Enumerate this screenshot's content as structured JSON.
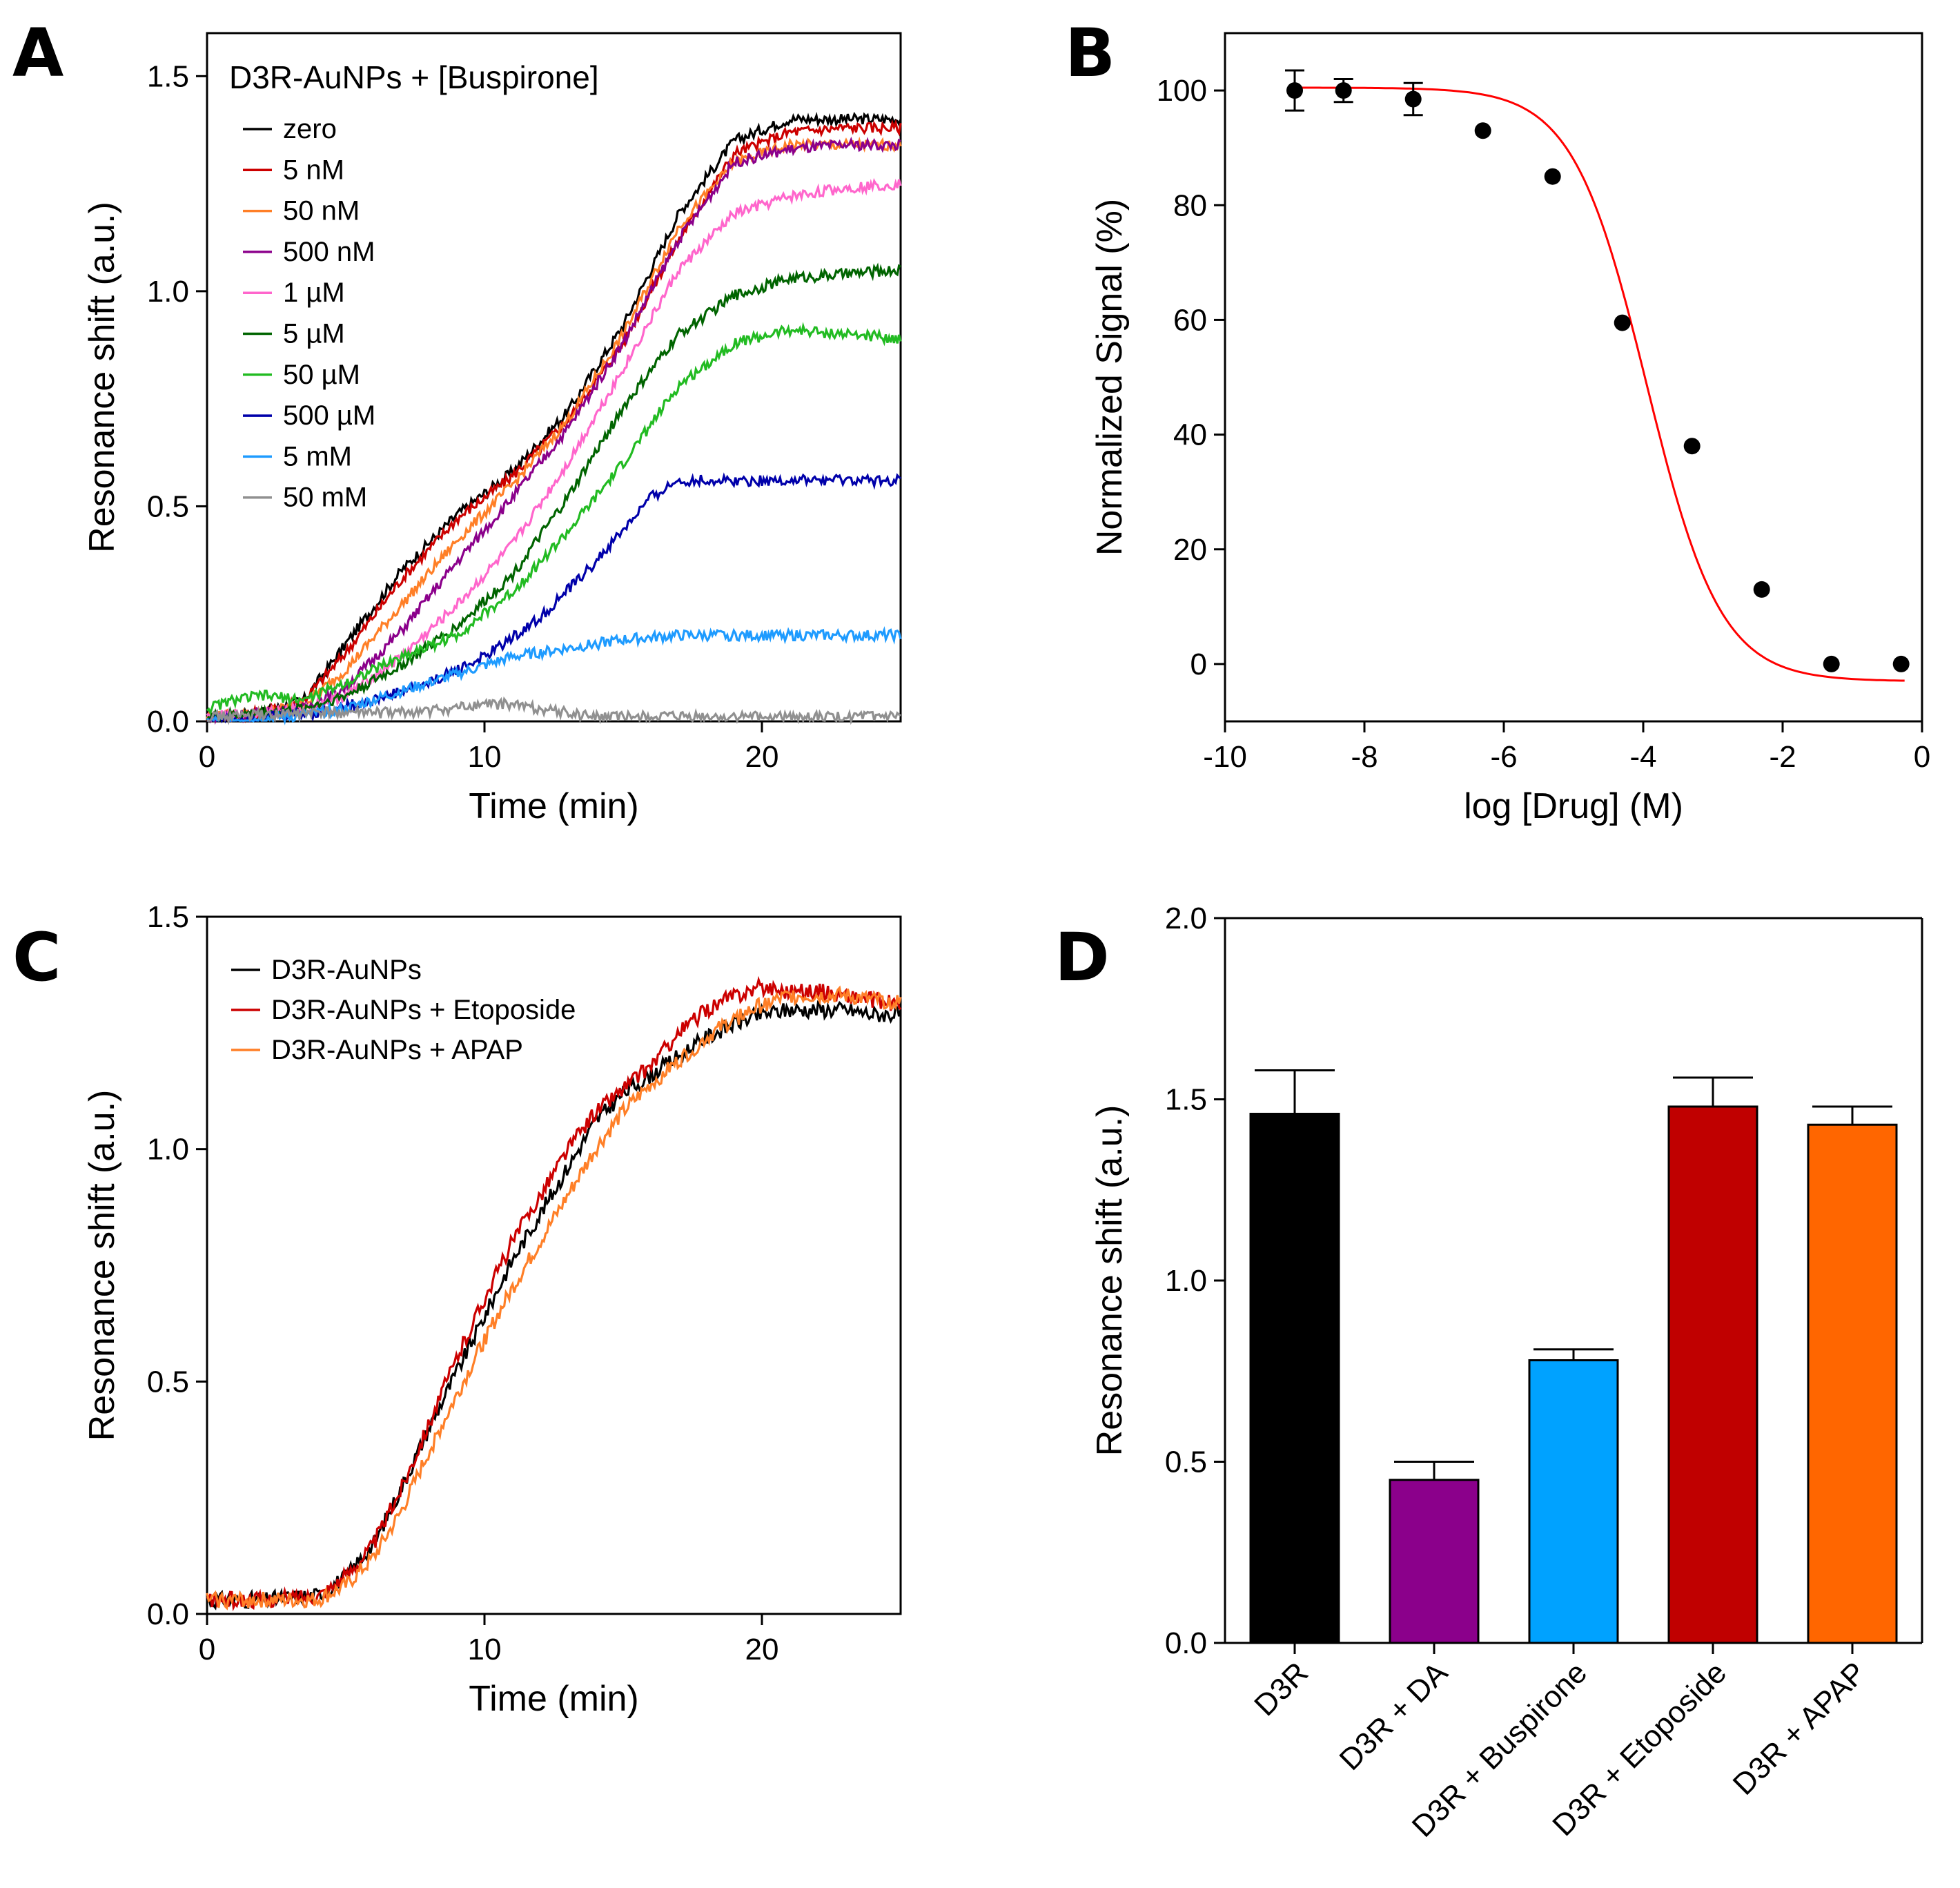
{
  "chart_data": [
    {
      "panel": "A",
      "type": "line",
      "legend_title": "D3R-AuNPs + [Buspirone]",
      "xlabel": "Time (min)",
      "ylabel": "Resonance shift (a.u.)",
      "xlim": [
        0,
        25
      ],
      "ylim": [
        0,
        1.6
      ],
      "xticks": [
        0,
        10,
        20
      ],
      "yticks": [
        0.0,
        0.5,
        1.0,
        1.5
      ],
      "xtick_labels": [
        "0",
        "10",
        "20"
      ],
      "ytick_labels": [
        "0.0",
        "0.5",
        "1.0",
        "1.5"
      ],
      "legend_position": "top-left",
      "series": [
        {
          "name": "zero",
          "color": "#000000",
          "x": [
            0,
            2,
            3.5,
            5,
            7,
            9,
            11,
            13,
            15,
            17,
            19,
            21,
            23,
            25
          ],
          "y": [
            0.01,
            0.02,
            0.05,
            0.18,
            0.35,
            0.48,
            0.58,
            0.72,
            0.92,
            1.18,
            1.35,
            1.4,
            1.4,
            1.4
          ]
        },
        {
          "name": "5 nM",
          "color": "#cc0000",
          "x": [
            0,
            2,
            3.5,
            5,
            7,
            9,
            11,
            13,
            15,
            17,
            19,
            21,
            23,
            25
          ],
          "y": [
            0.01,
            0.02,
            0.05,
            0.16,
            0.33,
            0.47,
            0.57,
            0.7,
            0.88,
            1.12,
            1.32,
            1.37,
            1.38,
            1.38
          ]
        },
        {
          "name": "50 nM",
          "color": "#ff7f27",
          "x": [
            0,
            2,
            3.5,
            5,
            7,
            9,
            11,
            13,
            15,
            17,
            19,
            21,
            23,
            25
          ],
          "y": [
            0.01,
            0.02,
            0.04,
            0.12,
            0.27,
            0.42,
            0.55,
            0.7,
            0.9,
            1.15,
            1.3,
            1.34,
            1.34,
            1.34
          ]
        },
        {
          "name": "500 nM",
          "color": "#8b008b",
          "x": [
            0,
            2,
            3.5,
            5,
            7,
            9,
            11,
            13,
            15,
            17,
            19,
            21,
            23,
            25
          ],
          "y": [
            0.01,
            0.02,
            0.03,
            0.08,
            0.21,
            0.37,
            0.52,
            0.68,
            0.88,
            1.12,
            1.3,
            1.33,
            1.34,
            1.34
          ]
        },
        {
          "name": "1 µM",
          "color": "#ff66cc",
          "x": [
            0,
            2,
            3.5,
            5,
            7,
            9,
            11,
            13,
            15,
            17,
            19,
            21,
            23,
            25
          ],
          "y": [
            0.01,
            0.02,
            0.03,
            0.06,
            0.15,
            0.27,
            0.41,
            0.6,
            0.82,
            1.05,
            1.18,
            1.22,
            1.24,
            1.25
          ]
        },
        {
          "name": "5 µM",
          "color": "#006400",
          "x": [
            0,
            2,
            3.5,
            5,
            7,
            9,
            11,
            13,
            15,
            17,
            19,
            21,
            23,
            25
          ],
          "y": [
            0.01,
            0.02,
            0.03,
            0.06,
            0.13,
            0.22,
            0.34,
            0.52,
            0.73,
            0.9,
            0.99,
            1.03,
            1.04,
            1.05
          ]
        },
        {
          "name": "50 µM",
          "color": "#22bb22",
          "x": [
            0,
            1,
            2,
            3.5,
            5,
            7,
            9,
            11,
            13,
            15,
            17,
            19,
            21,
            23,
            25
          ],
          "y": [
            0.03,
            0.05,
            0.06,
            0.05,
            0.09,
            0.15,
            0.2,
            0.3,
            0.44,
            0.6,
            0.78,
            0.88,
            0.91,
            0.9,
            0.89
          ]
        },
        {
          "name": "500 µM",
          "color": "#0000aa",
          "x": [
            0,
            2,
            4,
            6,
            8,
            10,
            12,
            14,
            16,
            17,
            19,
            21,
            23,
            25
          ],
          "y": [
            0.0,
            0.01,
            0.02,
            0.05,
            0.09,
            0.15,
            0.24,
            0.37,
            0.52,
            0.56,
            0.56,
            0.56,
            0.56,
            0.56
          ]
        },
        {
          "name": "5 mM",
          "color": "#1e9bff",
          "x": [
            0,
            3,
            5,
            7,
            9,
            11,
            13,
            15,
            17,
            19,
            21,
            23,
            25
          ],
          "y": [
            0.0,
            0.01,
            0.03,
            0.07,
            0.11,
            0.15,
            0.17,
            0.19,
            0.2,
            0.2,
            0.2,
            0.2,
            0.2
          ]
        },
        {
          "name": "50 mM",
          "color": "#909090",
          "x": [
            0,
            4,
            7,
            9,
            10,
            11,
            12,
            14,
            16,
            18,
            20,
            22,
            25
          ],
          "y": [
            0.01,
            0.02,
            0.02,
            0.03,
            0.04,
            0.04,
            0.03,
            0.01,
            0.01,
            0.01,
            0.01,
            0.01,
            0.01
          ]
        }
      ]
    },
    {
      "panel": "B",
      "type": "scatter",
      "xlabel": "log [Drug] (M)",
      "ylabel": "Normalized Signal (%)",
      "xlim": [
        -10,
        0
      ],
      "ylim": [
        -10,
        110
      ],
      "xticks": [
        -10,
        -8,
        -6,
        -4,
        -2,
        0
      ],
      "yticks": [
        0,
        20,
        40,
        60,
        80,
        100
      ],
      "xtick_labels": [
        "-10",
        "-8",
        "-6",
        "-4",
        "-2",
        "0"
      ],
      "ytick_labels": [
        "0",
        "20",
        "40",
        "60",
        "80",
        "100"
      ],
      "points": {
        "x": [
          -9.0,
          -8.3,
          -7.3,
          -6.3,
          -5.3,
          -4.3,
          -3.3,
          -2.3,
          -1.3,
          -0.3
        ],
        "y": [
          100,
          100,
          98.5,
          93,
          85,
          59.5,
          38,
          13,
          0,
          0
        ],
        "error": [
          3.5,
          2,
          2.8,
          0,
          0,
          0,
          0,
          0,
          0,
          0
        ]
      },
      "fit": {
        "model": "sigmoid",
        "top": 100.5,
        "bottom": -3,
        "log_ic50": -3.95,
        "hill_slope": -0.82,
        "color": "#ff0000"
      }
    },
    {
      "panel": "C",
      "type": "line",
      "xlabel": "Time (min)",
      "ylabel": "Resonance shift (a.u.)",
      "xlim": [
        0,
        25
      ],
      "ylim": [
        0,
        1.5
      ],
      "xticks": [
        0,
        10,
        20
      ],
      "yticks": [
        0.0,
        0.5,
        1.0,
        1.5
      ],
      "xtick_labels": [
        "0",
        "10",
        "20"
      ],
      "ytick_labels": [
        "0.0",
        "0.5",
        "1.0",
        "1.5"
      ],
      "legend_position": "top-left",
      "series": [
        {
          "name": "D3R-AuNPs",
          "color": "#000000",
          "x": [
            0,
            2,
            4,
            5,
            6,
            7,
            8,
            9,
            10,
            11,
            12,
            13,
            14,
            15,
            16,
            17,
            18,
            19,
            20,
            21,
            22,
            23,
            24,
            25
          ],
          "y": [
            0.03,
            0.03,
            0.04,
            0.08,
            0.15,
            0.27,
            0.4,
            0.52,
            0.64,
            0.76,
            0.86,
            0.96,
            1.06,
            1.12,
            1.16,
            1.2,
            1.24,
            1.27,
            1.29,
            1.3,
            1.3,
            1.3,
            1.29,
            1.29
          ]
        },
        {
          "name": "D3R-AuNPs + Etoposide",
          "color": "#cc0000",
          "x": [
            0,
            2,
            4,
            5,
            6,
            7,
            8,
            9,
            10,
            11,
            12,
            13,
            14,
            15,
            16,
            17,
            18,
            19,
            20,
            21,
            22,
            23,
            24,
            25
          ],
          "y": [
            0.03,
            0.03,
            0.04,
            0.08,
            0.15,
            0.27,
            0.41,
            0.55,
            0.68,
            0.8,
            0.9,
            1.0,
            1.08,
            1.13,
            1.18,
            1.25,
            1.3,
            1.33,
            1.35,
            1.34,
            1.34,
            1.33,
            1.32,
            1.31
          ]
        },
        {
          "name": "D3R-AuNPs + APAP",
          "color": "#ff7f27",
          "x": [
            0,
            2,
            4,
            5,
            6,
            7,
            8,
            9,
            10,
            11,
            12,
            13,
            14,
            15,
            16,
            17,
            18,
            19,
            20,
            21,
            22,
            23,
            24,
            25
          ],
          "y": [
            0.03,
            0.03,
            0.03,
            0.06,
            0.12,
            0.22,
            0.35,
            0.47,
            0.59,
            0.7,
            0.8,
            0.9,
            1.0,
            1.08,
            1.14,
            1.19,
            1.24,
            1.28,
            1.31,
            1.33,
            1.33,
            1.33,
            1.32,
            1.32
          ]
        }
      ]
    },
    {
      "panel": "D",
      "type": "bar",
      "ylabel": "Resonance shift (a.u.)",
      "ylim": [
        0,
        2.0
      ],
      "yticks": [
        0.0,
        0.5,
        1.0,
        1.5,
        2.0
      ],
      "ytick_labels": [
        "0.0",
        "0.5",
        "1.0",
        "1.5",
        "2.0"
      ],
      "categories": [
        "D3R",
        "D3R + DA",
        "D3R + Buspirone",
        "D3R + Etoposide",
        "D3R + APAP"
      ],
      "values": [
        1.46,
        0.45,
        0.78,
        1.48,
        1.43
      ],
      "errors": [
        0.12,
        0.05,
        0.03,
        0.08,
        0.05
      ],
      "colors": [
        "#000000",
        "#8b008b",
        "#00a2ff",
        "#c00000",
        "#ff6600"
      ]
    }
  ]
}
